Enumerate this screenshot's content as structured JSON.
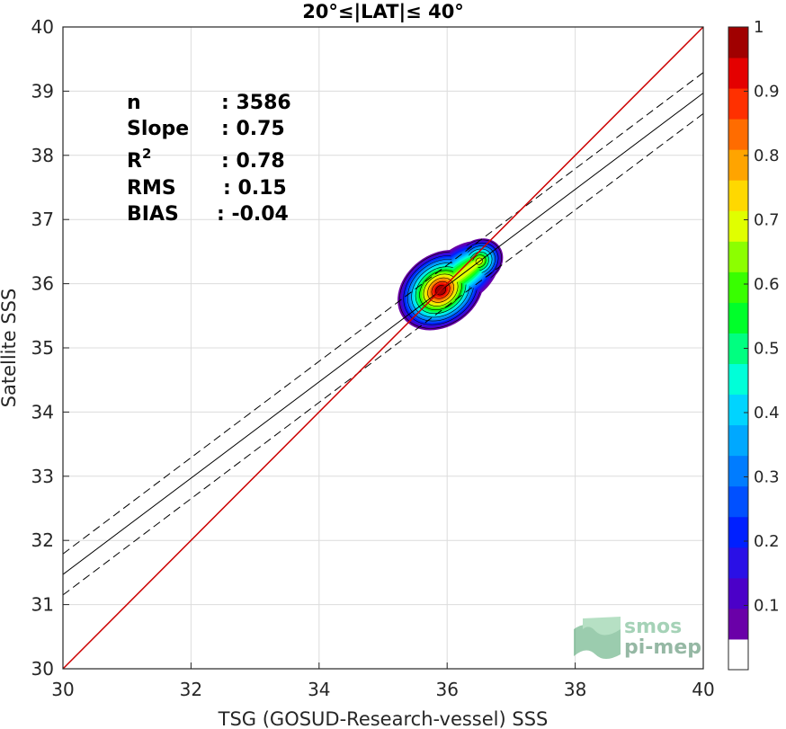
{
  "chart_data": {
    "type": "scatter",
    "subtype": "density-contour",
    "title": "20°≤|LAT|≤ 40°",
    "xlabel": "TSG (GOSUD-Research-vessel) SSS",
    "ylabel": "Satellite SSS",
    "xlim": [
      30,
      40
    ],
    "ylim": [
      30,
      40
    ],
    "xticks": [
      "30",
      "32",
      "34",
      "36",
      "38",
      "40"
    ],
    "yticks": [
      "30",
      "31",
      "32",
      "33",
      "34",
      "35",
      "36",
      "37",
      "38",
      "39",
      "40"
    ],
    "grid": true,
    "stats": [
      {
        "label": "n",
        "value": ": 3586"
      },
      {
        "label": "Slope",
        "value": ": 0.75"
      },
      {
        "label": "R",
        "sup": "2",
        "value": ": 0.78"
      },
      {
        "label": "RMS",
        "value": ": 0.15"
      },
      {
        "label": "BIAS",
        "value": ": -0.04"
      }
    ],
    "lines": {
      "identity": {
        "color": "#cc0000",
        "x": [
          30,
          40
        ],
        "y": [
          30,
          40
        ]
      },
      "regression": {
        "color": "#000000",
        "style": "solid",
        "x": [
          30,
          40
        ],
        "y": [
          31.47,
          38.97
        ]
      },
      "upper_bound": {
        "color": "#000000",
        "style": "dashed",
        "x": [
          30,
          40
        ],
        "y": [
          31.79,
          39.29
        ]
      },
      "lower_bound": {
        "color": "#000000",
        "style": "dashed",
        "x": [
          30,
          40
        ],
        "y": [
          31.15,
          38.65
        ]
      }
    },
    "density": {
      "peak_main": {
        "x": 35.9,
        "y": 35.9,
        "level": 1.0
      },
      "peak_secondary": {
        "x": 36.5,
        "y": 36.35,
        "level": 0.7
      },
      "x_range": [
        35.4,
        36.85
      ],
      "y_range": [
        35.4,
        36.75
      ]
    },
    "colorbar": {
      "ticks": [
        "0.1",
        "0.2",
        "0.3",
        "0.4",
        "0.5",
        "0.6",
        "0.7",
        "0.8",
        "0.9",
        "1"
      ],
      "range": [
        0,
        1
      ],
      "levels": 20,
      "colormap": [
        "#ffffff",
        "#6a00a8",
        "#4b00c8",
        "#2a10e6",
        "#0020ff",
        "#0050ff",
        "#007cff",
        "#00a8ff",
        "#00d4ff",
        "#00ffd8",
        "#00ff80",
        "#00ff2a",
        "#38ff00",
        "#8cff00",
        "#e0ff00",
        "#ffd800",
        "#ffa400",
        "#ff6c00",
        "#ff3000",
        "#e40000",
        "#a00000"
      ]
    },
    "watermark": {
      "line1": "smos",
      "line2": "pi-mep"
    }
  }
}
